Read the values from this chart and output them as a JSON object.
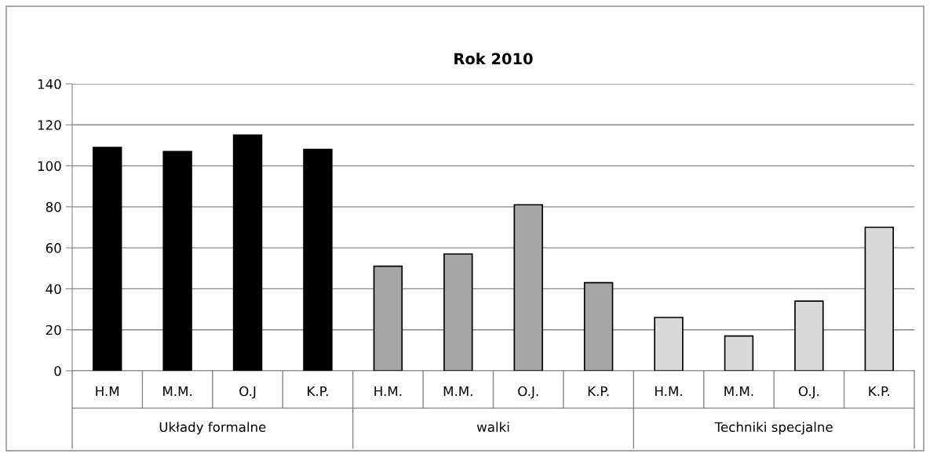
{
  "chart_data": {
    "type": "bar",
    "title": "Rok 2010",
    "categories": [
      "H.M",
      "M.M.",
      "O.J",
      "K.P.",
      "H.M.",
      "M.M.",
      "O.J.",
      "K.P.",
      "H.M.",
      "M.M.",
      "O.J.",
      "K.P."
    ],
    "values": [
      109,
      107,
      115,
      108,
      51,
      57,
      81,
      43,
      26,
      17,
      34,
      70
    ],
    "colors": [
      "#000000",
      "#000000",
      "#000000",
      "#000000",
      "#a6a6a6",
      "#a6a6a6",
      "#a6a6a6",
      "#a6a6a6",
      "#d9d9d9",
      "#d9d9d9",
      "#d9d9d9",
      "#d9d9d9"
    ],
    "annotations": [
      "Układy formalne",
      "walki",
      "Techniki specjalne"
    ],
    "ylim": [
      0,
      140
    ],
    "yticks": [
      0,
      20,
      40,
      60,
      80,
      100,
      120,
      140
    ],
    "grid": "y"
  }
}
